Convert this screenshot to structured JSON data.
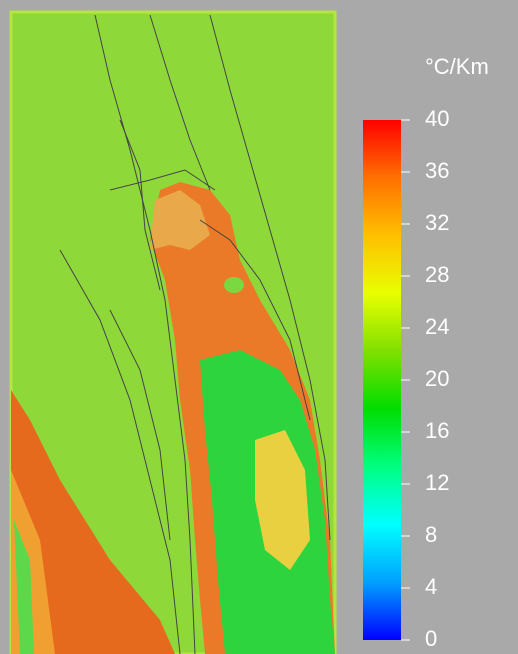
{
  "colorbar": {
    "title": "°C/Km",
    "min": 0,
    "max": 40,
    "ticks": [
      0,
      4,
      8,
      12,
      16,
      20,
      24,
      28,
      32,
      36,
      40
    ],
    "colors": [
      "#0000ff",
      "#00a0ff",
      "#00ffff",
      "#00ff80",
      "#00dd00",
      "#80e000",
      "#e8ff00",
      "#ffc000",
      "#ff7000",
      "#ff0000"
    ]
  }
}
